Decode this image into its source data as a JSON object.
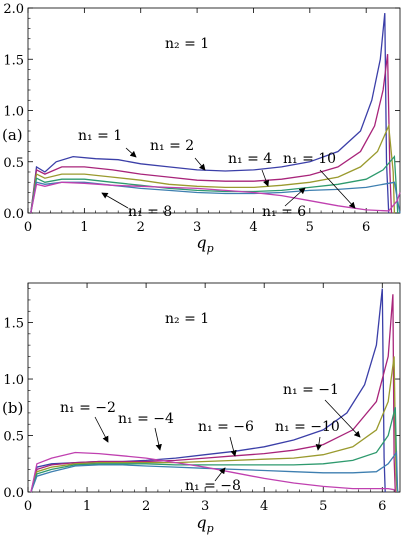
{
  "chart_data": [
    {
      "type": "line",
      "panel_label": "(a)",
      "annotation": "n₂ = 1",
      "xlabel": "qp",
      "xlim": [
        0,
        6.6
      ],
      "ylim": [
        0,
        2.0
      ],
      "xticks": [
        0,
        1,
        2,
        3,
        4,
        5,
        6
      ],
      "yticks": [
        0.0,
        0.5,
        1.0,
        1.5,
        2.0
      ],
      "curve_labels": [
        "n₁ = 1",
        "n₁ = 2",
        "n₁ = 4",
        "n₁ = 10",
        "n₁ = 8",
        "n₁ = 6"
      ],
      "series": [
        {
          "color": "#3b3fa8",
          "values": [
            [
              0.05,
              0.0
            ],
            [
              0.15,
              0.45
            ],
            [
              0.3,
              0.4
            ],
            [
              0.5,
              0.5
            ],
            [
              0.8,
              0.55
            ],
            [
              1.2,
              0.53
            ],
            [
              1.6,
              0.52
            ],
            [
              2.0,
              0.48
            ],
            [
              2.5,
              0.45
            ],
            [
              3.0,
              0.42
            ],
            [
              3.5,
              0.41
            ],
            [
              4.0,
              0.42
            ],
            [
              4.5,
              0.45
            ],
            [
              5.0,
              0.5
            ],
            [
              5.5,
              0.6
            ],
            [
              5.9,
              0.8
            ],
            [
              6.1,
              1.1
            ],
            [
              6.25,
              1.5
            ],
            [
              6.33,
              1.95
            ],
            [
              6.36,
              0.5
            ],
            [
              6.4,
              0.0
            ]
          ]
        },
        {
          "color": "#a8247a",
          "values": [
            [
              0.05,
              0.0
            ],
            [
              0.15,
              0.42
            ],
            [
              0.3,
              0.38
            ],
            [
              0.6,
              0.45
            ],
            [
              1.0,
              0.45
            ],
            [
              1.5,
              0.42
            ],
            [
              2.0,
              0.38
            ],
            [
              2.5,
              0.35
            ],
            [
              3.0,
              0.32
            ],
            [
              3.5,
              0.31
            ],
            [
              4.0,
              0.31
            ],
            [
              4.5,
              0.33
            ],
            [
              5.0,
              0.37
            ],
            [
              5.5,
              0.45
            ],
            [
              5.9,
              0.6
            ],
            [
              6.15,
              0.85
            ],
            [
              6.3,
              1.2
            ],
            [
              6.38,
              1.55
            ],
            [
              6.42,
              0.4
            ],
            [
              6.45,
              0.0
            ]
          ]
        },
        {
          "color": "#9a9a2e",
          "values": [
            [
              0.05,
              0.0
            ],
            [
              0.15,
              0.38
            ],
            [
              0.3,
              0.34
            ],
            [
              0.6,
              0.38
            ],
            [
              1.0,
              0.38
            ],
            [
              1.5,
              0.35
            ],
            [
              2.0,
              0.32
            ],
            [
              2.5,
              0.28
            ],
            [
              3.0,
              0.26
            ],
            [
              3.5,
              0.25
            ],
            [
              4.0,
              0.25
            ],
            [
              4.5,
              0.27
            ],
            [
              5.0,
              0.3
            ],
            [
              5.5,
              0.35
            ],
            [
              5.9,
              0.45
            ],
            [
              6.2,
              0.6
            ],
            [
              6.4,
              0.85
            ],
            [
              6.48,
              0.4
            ],
            [
              6.5,
              0.0
            ]
          ]
        },
        {
          "color": "#2e9a6e",
          "values": [
            [
              0.05,
              0.0
            ],
            [
              0.15,
              0.34
            ],
            [
              0.3,
              0.3
            ],
            [
              0.6,
              0.33
            ],
            [
              1.0,
              0.33
            ],
            [
              1.5,
              0.3
            ],
            [
              2.0,
              0.27
            ],
            [
              2.5,
              0.24
            ],
            [
              3.0,
              0.22
            ],
            [
              3.5,
              0.21
            ],
            [
              4.0,
              0.21
            ],
            [
              4.5,
              0.22
            ],
            [
              5.0,
              0.25
            ],
            [
              5.5,
              0.28
            ],
            [
              6.0,
              0.33
            ],
            [
              6.3,
              0.42
            ],
            [
              6.5,
              0.55
            ],
            [
              6.55,
              0.1
            ],
            [
              6.56,
              0.0
            ]
          ]
        },
        {
          "color": "#3e7fb0",
          "values": [
            [
              0.05,
              0.0
            ],
            [
              0.15,
              0.3
            ],
            [
              0.3,
              0.28
            ],
            [
              0.6,
              0.3
            ],
            [
              1.0,
              0.3
            ],
            [
              1.5,
              0.27
            ],
            [
              2.0,
              0.24
            ],
            [
              2.5,
              0.22
            ],
            [
              3.0,
              0.2
            ],
            [
              3.5,
              0.19
            ],
            [
              4.0,
              0.19
            ],
            [
              4.5,
              0.2
            ],
            [
              5.0,
              0.22
            ],
            [
              5.5,
              0.23
            ],
            [
              6.0,
              0.25
            ],
            [
              6.3,
              0.28
            ],
            [
              6.5,
              0.3
            ],
            [
              6.58,
              0.05
            ],
            [
              6.6,
              0.0
            ]
          ]
        },
        {
          "color": "#c040b0",
          "values": [
            [
              0.05,
              0.0
            ],
            [
              0.15,
              0.28
            ],
            [
              0.3,
              0.26
            ],
            [
              0.6,
              0.3
            ],
            [
              1.0,
              0.29
            ],
            [
              1.5,
              0.27
            ],
            [
              2.0,
              0.26
            ],
            [
              2.5,
              0.25
            ],
            [
              3.0,
              0.24
            ],
            [
              3.5,
              0.22
            ],
            [
              4.0,
              0.2
            ],
            [
              4.5,
              0.17
            ],
            [
              5.0,
              0.12
            ],
            [
              5.5,
              0.07
            ],
            [
              6.0,
              0.03
            ],
            [
              6.4,
              0.02
            ],
            [
              6.55,
              0.12
            ],
            [
              6.6,
              0.2
            ]
          ]
        }
      ]
    },
    {
      "type": "line",
      "panel_label": "(b)",
      "annotation": "n₂ = 1",
      "xlabel": "qp",
      "xlim": [
        0,
        6.3
      ],
      "ylim": [
        0,
        1.85
      ],
      "xticks": [
        0,
        1,
        2,
        3,
        4,
        5,
        6
      ],
      "yticks": [
        0.0,
        0.5,
        1.0,
        1.5
      ],
      "curve_labels": [
        "n₁ = −1",
        "n₁ = −2",
        "n₁ = −4",
        "n₁ = −6",
        "n₁ = −10",
        "n₁ = −8"
      ],
      "series": [
        {
          "color": "#3b3fa8",
          "values": [
            [
              0.05,
              0.0
            ],
            [
              0.15,
              0.22
            ],
            [
              0.4,
              0.25
            ],
            [
              0.8,
              0.26
            ],
            [
              1.2,
              0.27
            ],
            [
              1.6,
              0.27
            ],
            [
              2.0,
              0.28
            ],
            [
              2.5,
              0.3
            ],
            [
              3.0,
              0.33
            ],
            [
              3.5,
              0.36
            ],
            [
              4.0,
              0.4
            ],
            [
              4.5,
              0.46
            ],
            [
              5.0,
              0.55
            ],
            [
              5.4,
              0.7
            ],
            [
              5.7,
              0.95
            ],
            [
              5.9,
              1.3
            ],
            [
              6.0,
              1.8
            ],
            [
              6.03,
              0.3
            ],
            [
              6.05,
              0.0
            ]
          ]
        },
        {
          "color": "#a8247a",
          "values": [
            [
              0.05,
              0.0
            ],
            [
              0.15,
              0.2
            ],
            [
              0.4,
              0.24
            ],
            [
              0.8,
              0.26
            ],
            [
              1.2,
              0.27
            ],
            [
              1.6,
              0.27
            ],
            [
              2.0,
              0.27
            ],
            [
              2.5,
              0.28
            ],
            [
              3.0,
              0.3
            ],
            [
              3.5,
              0.32
            ],
            [
              4.0,
              0.34
            ],
            [
              4.5,
              0.37
            ],
            [
              5.0,
              0.42
            ],
            [
              5.5,
              0.55
            ],
            [
              5.9,
              0.8
            ],
            [
              6.1,
              1.2
            ],
            [
              6.18,
              1.75
            ],
            [
              6.2,
              0.3
            ],
            [
              6.22,
              0.0
            ]
          ]
        },
        {
          "color": "#9a9a2e",
          "values": [
            [
              0.05,
              0.0
            ],
            [
              0.15,
              0.18
            ],
            [
              0.4,
              0.22
            ],
            [
              0.8,
              0.25
            ],
            [
              1.2,
              0.26
            ],
            [
              1.6,
              0.26
            ],
            [
              2.0,
              0.26
            ],
            [
              2.5,
              0.26
            ],
            [
              3.0,
              0.27
            ],
            [
              3.5,
              0.28
            ],
            [
              4.0,
              0.29
            ],
            [
              4.5,
              0.3
            ],
            [
              5.0,
              0.33
            ],
            [
              5.5,
              0.4
            ],
            [
              5.9,
              0.55
            ],
            [
              6.1,
              0.8
            ],
            [
              6.2,
              1.2
            ],
            [
              6.23,
              0.2
            ],
            [
              6.25,
              0.0
            ]
          ]
        },
        {
          "color": "#2e9a6e",
          "values": [
            [
              0.05,
              0.0
            ],
            [
              0.15,
              0.16
            ],
            [
              0.4,
              0.2
            ],
            [
              0.8,
              0.24
            ],
            [
              1.2,
              0.25
            ],
            [
              1.6,
              0.25
            ],
            [
              2.0,
              0.25
            ],
            [
              2.5,
              0.24
            ],
            [
              3.0,
              0.24
            ],
            [
              3.5,
              0.24
            ],
            [
              4.0,
              0.24
            ],
            [
              4.5,
              0.24
            ],
            [
              5.0,
              0.25
            ],
            [
              5.5,
              0.28
            ],
            [
              5.9,
              0.35
            ],
            [
              6.1,
              0.5
            ],
            [
              6.22,
              0.75
            ],
            [
              6.25,
              0.1
            ],
            [
              6.26,
              0.0
            ]
          ]
        },
        {
          "color": "#3e7fb0",
          "values": [
            [
              0.05,
              0.0
            ],
            [
              0.15,
              0.14
            ],
            [
              0.4,
              0.18
            ],
            [
              0.8,
              0.23
            ],
            [
              1.2,
              0.24
            ],
            [
              1.6,
              0.24
            ],
            [
              2.0,
              0.23
            ],
            [
              2.5,
              0.22
            ],
            [
              3.0,
              0.21
            ],
            [
              3.5,
              0.2
            ],
            [
              4.0,
              0.19
            ],
            [
              4.5,
              0.18
            ],
            [
              5.0,
              0.17
            ],
            [
              5.5,
              0.17
            ],
            [
              5.9,
              0.18
            ],
            [
              6.1,
              0.25
            ],
            [
              6.24,
              0.35
            ],
            [
              6.26,
              0.0
            ]
          ]
        },
        {
          "color": "#c040b0",
          "values": [
            [
              0.05,
              0.0
            ],
            [
              0.15,
              0.25
            ],
            [
              0.4,
              0.3
            ],
            [
              0.8,
              0.35
            ],
            [
              1.2,
              0.34
            ],
            [
              1.6,
              0.32
            ],
            [
              2.0,
              0.3
            ],
            [
              2.5,
              0.26
            ],
            [
              3.0,
              0.22
            ],
            [
              3.5,
              0.17
            ],
            [
              4.0,
              0.12
            ],
            [
              4.5,
              0.08
            ],
            [
              5.0,
              0.05
            ],
            [
              5.5,
              0.03
            ],
            [
              5.9,
              0.03
            ],
            [
              6.1,
              0.03
            ],
            [
              6.2,
              0.02
            ]
          ]
        }
      ]
    }
  ]
}
